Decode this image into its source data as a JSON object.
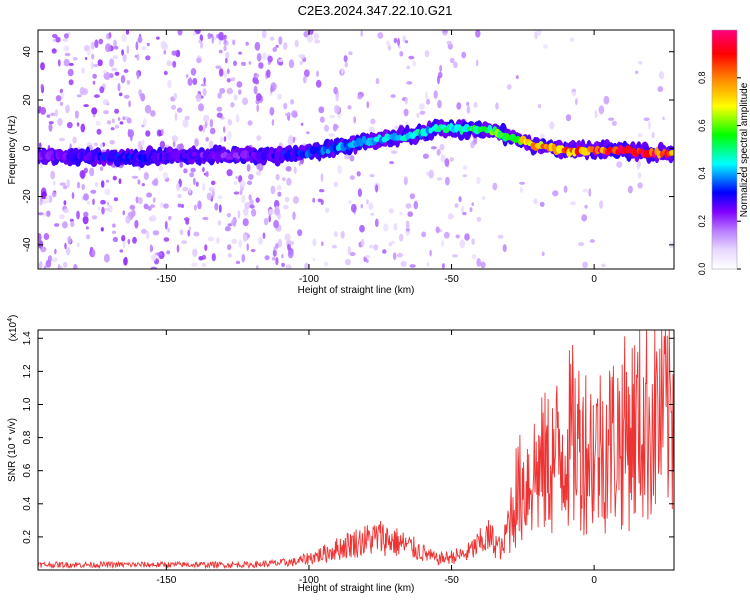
{
  "title": "C2E3.2024.347.22.10.G21",
  "chart_data": [
    {
      "type": "heatmap",
      "xlabel": "Height of straight line (km)",
      "ylabel": "Frequency (Hz)",
      "xlim": [
        -195,
        28
      ],
      "ylim": [
        -50,
        49
      ],
      "xticks": [
        -150,
        -100,
        -50,
        0
      ],
      "yticks": [
        -40,
        -20,
        0,
        20,
        40
      ],
      "colorbar": {
        "label": "Normalized spectral amplitude",
        "range": [
          0,
          1
        ],
        "ticks": [
          "0.0",
          "0.2",
          "0.4",
          "0.6",
          "0.8"
        ],
        "colors": [
          "#ffffff",
          "#e8d8ff",
          "#b87cff",
          "#8000ff",
          "#0000ff",
          "#00ffff",
          "#00ff00",
          "#ffff00",
          "#ff8000",
          "#ff0000",
          "#ff0080"
        ]
      },
      "ridge": [
        {
          "x": -190,
          "y": -3,
          "amp": 0.25
        },
        {
          "x": -170,
          "y": -4,
          "amp": 0.3
        },
        {
          "x": -150,
          "y": -3,
          "amp": 0.28
        },
        {
          "x": -130,
          "y": -3,
          "amp": 0.22
        },
        {
          "x": -110,
          "y": -3,
          "amp": 0.3
        },
        {
          "x": -95,
          "y": -1,
          "amp": 0.35
        },
        {
          "x": -80,
          "y": 3,
          "amp": 0.4
        },
        {
          "x": -65,
          "y": 5,
          "amp": 0.42
        },
        {
          "x": -55,
          "y": 8,
          "amp": 0.45
        },
        {
          "x": -45,
          "y": 8,
          "amp": 0.5
        },
        {
          "x": -35,
          "y": 7,
          "amp": 0.55
        },
        {
          "x": -28,
          "y": 4,
          "amp": 0.6
        },
        {
          "x": -20,
          "y": 1,
          "amp": 0.75
        },
        {
          "x": -10,
          "y": -1,
          "amp": 0.8
        },
        {
          "x": 0,
          "y": -1,
          "amp": 0.85
        },
        {
          "x": 10,
          "y": -1,
          "amp": 0.9
        },
        {
          "x": 20,
          "y": -2,
          "amp": 0.9
        },
        {
          "x": 27,
          "y": -2,
          "amp": 0.85
        }
      ]
    },
    {
      "type": "line",
      "xlabel": "Height of straight line (km)",
      "ylabel": "SNR (10 * v/v)",
      "yscale_note": "(x10^4)",
      "xlim": [
        -195,
        28
      ],
      "ylim": [
        0,
        1.45
      ],
      "xticks": [
        -150,
        -100,
        -50,
        0
      ],
      "yticks": [
        0.2,
        0.4,
        0.6,
        0.8,
        1.0,
        1.2,
        1.4
      ],
      "series": [
        {
          "color": "#ee3333",
          "envelope": [
            {
              "x": -195,
              "y": 0.04
            },
            {
              "x": -150,
              "y": 0.04
            },
            {
              "x": -120,
              "y": 0.04
            },
            {
              "x": -105,
              "y": 0.06
            },
            {
              "x": -95,
              "y": 0.12
            },
            {
              "x": -85,
              "y": 0.2
            },
            {
              "x": -75,
              "y": 0.25
            },
            {
              "x": -65,
              "y": 0.18
            },
            {
              "x": -55,
              "y": 0.08
            },
            {
              "x": -45,
              "y": 0.12
            },
            {
              "x": -37,
              "y": 0.25
            },
            {
              "x": -32,
              "y": 0.15
            },
            {
              "x": -28,
              "y": 0.6
            },
            {
              "x": -22,
              "y": 0.8
            },
            {
              "x": -15,
              "y": 0.9
            },
            {
              "x": -8,
              "y": 1.1
            },
            {
              "x": 0,
              "y": 1.0
            },
            {
              "x": 8,
              "y": 1.1
            },
            {
              "x": 15,
              "y": 1.2
            },
            {
              "x": 22,
              "y": 1.3
            },
            {
              "x": 28,
              "y": 1.33
            }
          ]
        }
      ]
    }
  ]
}
